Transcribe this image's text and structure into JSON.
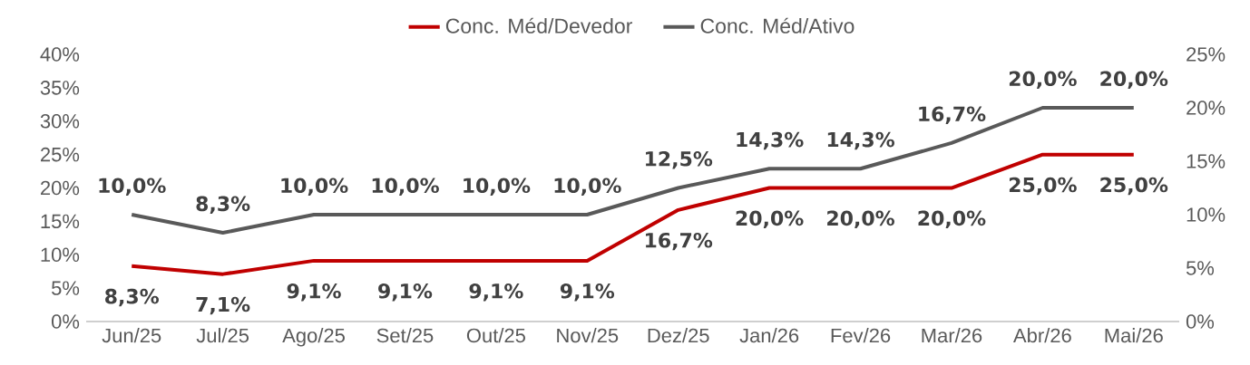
{
  "chart_data": {
    "type": "line",
    "categories": [
      "Jun/25",
      "Jul/25",
      "Ago/25",
      "Set/25",
      "Out/25",
      "Nov/25",
      "Dez/25",
      "Jan/26",
      "Fev/26",
      "Mar/26",
      "Abr/26",
      "Mai/26"
    ],
    "series": [
      {
        "name": "Conc. Méd/Devedor",
        "color": "#c00000",
        "values": [
          8.3,
          7.1,
          9.1,
          9.1,
          9.1,
          9.1,
          16.7,
          20.0,
          20.0,
          20.0,
          25.0,
          25.0
        ],
        "value_labels": [
          "8,3%",
          "7,1%",
          "9,1%",
          "9,1%",
          "9,1%",
          "9,1%",
          "16,7%",
          "20,0%",
          "20,0%",
          "20,0%",
          "25,0%",
          "25,0%"
        ]
      },
      {
        "name": "Conc. Méd/Ativo",
        "color": "#595959",
        "axis": "y2",
        "values": [
          10.0,
          8.3,
          10.0,
          10.0,
          10.0,
          10.0,
          12.5,
          14.3,
          14.3,
          16.7,
          20.0,
          20.0
        ],
        "value_labels": [
          "10,0%",
          "8,3%",
          "10,0%",
          "10,0%",
          "10,0%",
          "10,0%",
          "12,5%",
          "14,3%",
          "14,3%",
          "16,7%",
          "20,0%",
          "20,0%"
        ]
      }
    ],
    "ylim": [
      0,
      40
    ],
    "yticks": [
      {
        "value": 0,
        "label": "0%"
      },
      {
        "value": 5,
        "label": "5%"
      },
      {
        "value": 10,
        "label": "10%"
      },
      {
        "value": 15,
        "label": "15%"
      },
      {
        "value": 20,
        "label": "20%"
      },
      {
        "value": 25,
        "label": "25%"
      },
      {
        "value": 30,
        "label": "30%"
      },
      {
        "value": 35,
        "label": "35%"
      },
      {
        "value": 40,
        "label": "40%"
      }
    ],
    "y2lim": [
      0,
      25
    ],
    "y2ticks": [
      {
        "value": 0,
        "label": "0%"
      },
      {
        "value": 5,
        "label": "5%"
      },
      {
        "value": 10,
        "label": "10%"
      },
      {
        "value": 15,
        "label": "15%"
      },
      {
        "value": 20,
        "label": "20%"
      },
      {
        "value": 25,
        "label": "25%"
      }
    ],
    "legend": "top",
    "grid": false
  }
}
